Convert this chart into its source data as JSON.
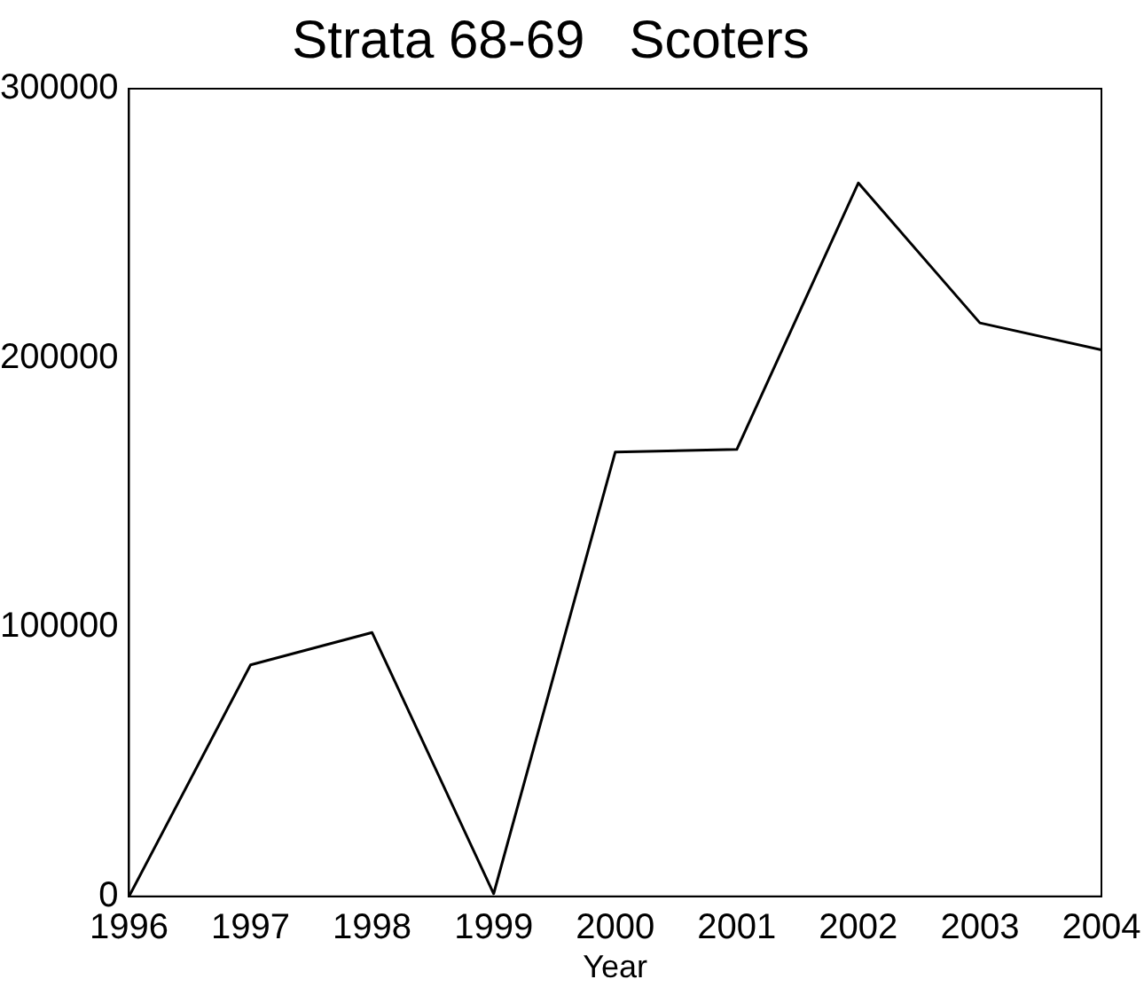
{
  "chart_data": {
    "type": "line",
    "title": "Strata 68-69   Scoters",
    "xlabel": "Year",
    "x": [
      1996,
      1997,
      1998,
      1999,
      2000,
      2001,
      2002,
      2003,
      2004
    ],
    "series": [
      {
        "color": "#000000",
        "values": [
          0,
          86000,
          98000,
          1000,
          165000,
          166000,
          265000,
          213000,
          203000
        ]
      }
    ],
    "xlim": [
      1996,
      2004
    ],
    "xticks": [
      1996,
      1997,
      1998,
      1999,
      2000,
      2001,
      2002,
      2003,
      2004
    ],
    "ylim": [
      0,
      300000
    ],
    "yticks": [
      0,
      100000,
      200000,
      300000
    ],
    "grid": false,
    "legend": false,
    "marker": "none",
    "line_style": "solid"
  }
}
